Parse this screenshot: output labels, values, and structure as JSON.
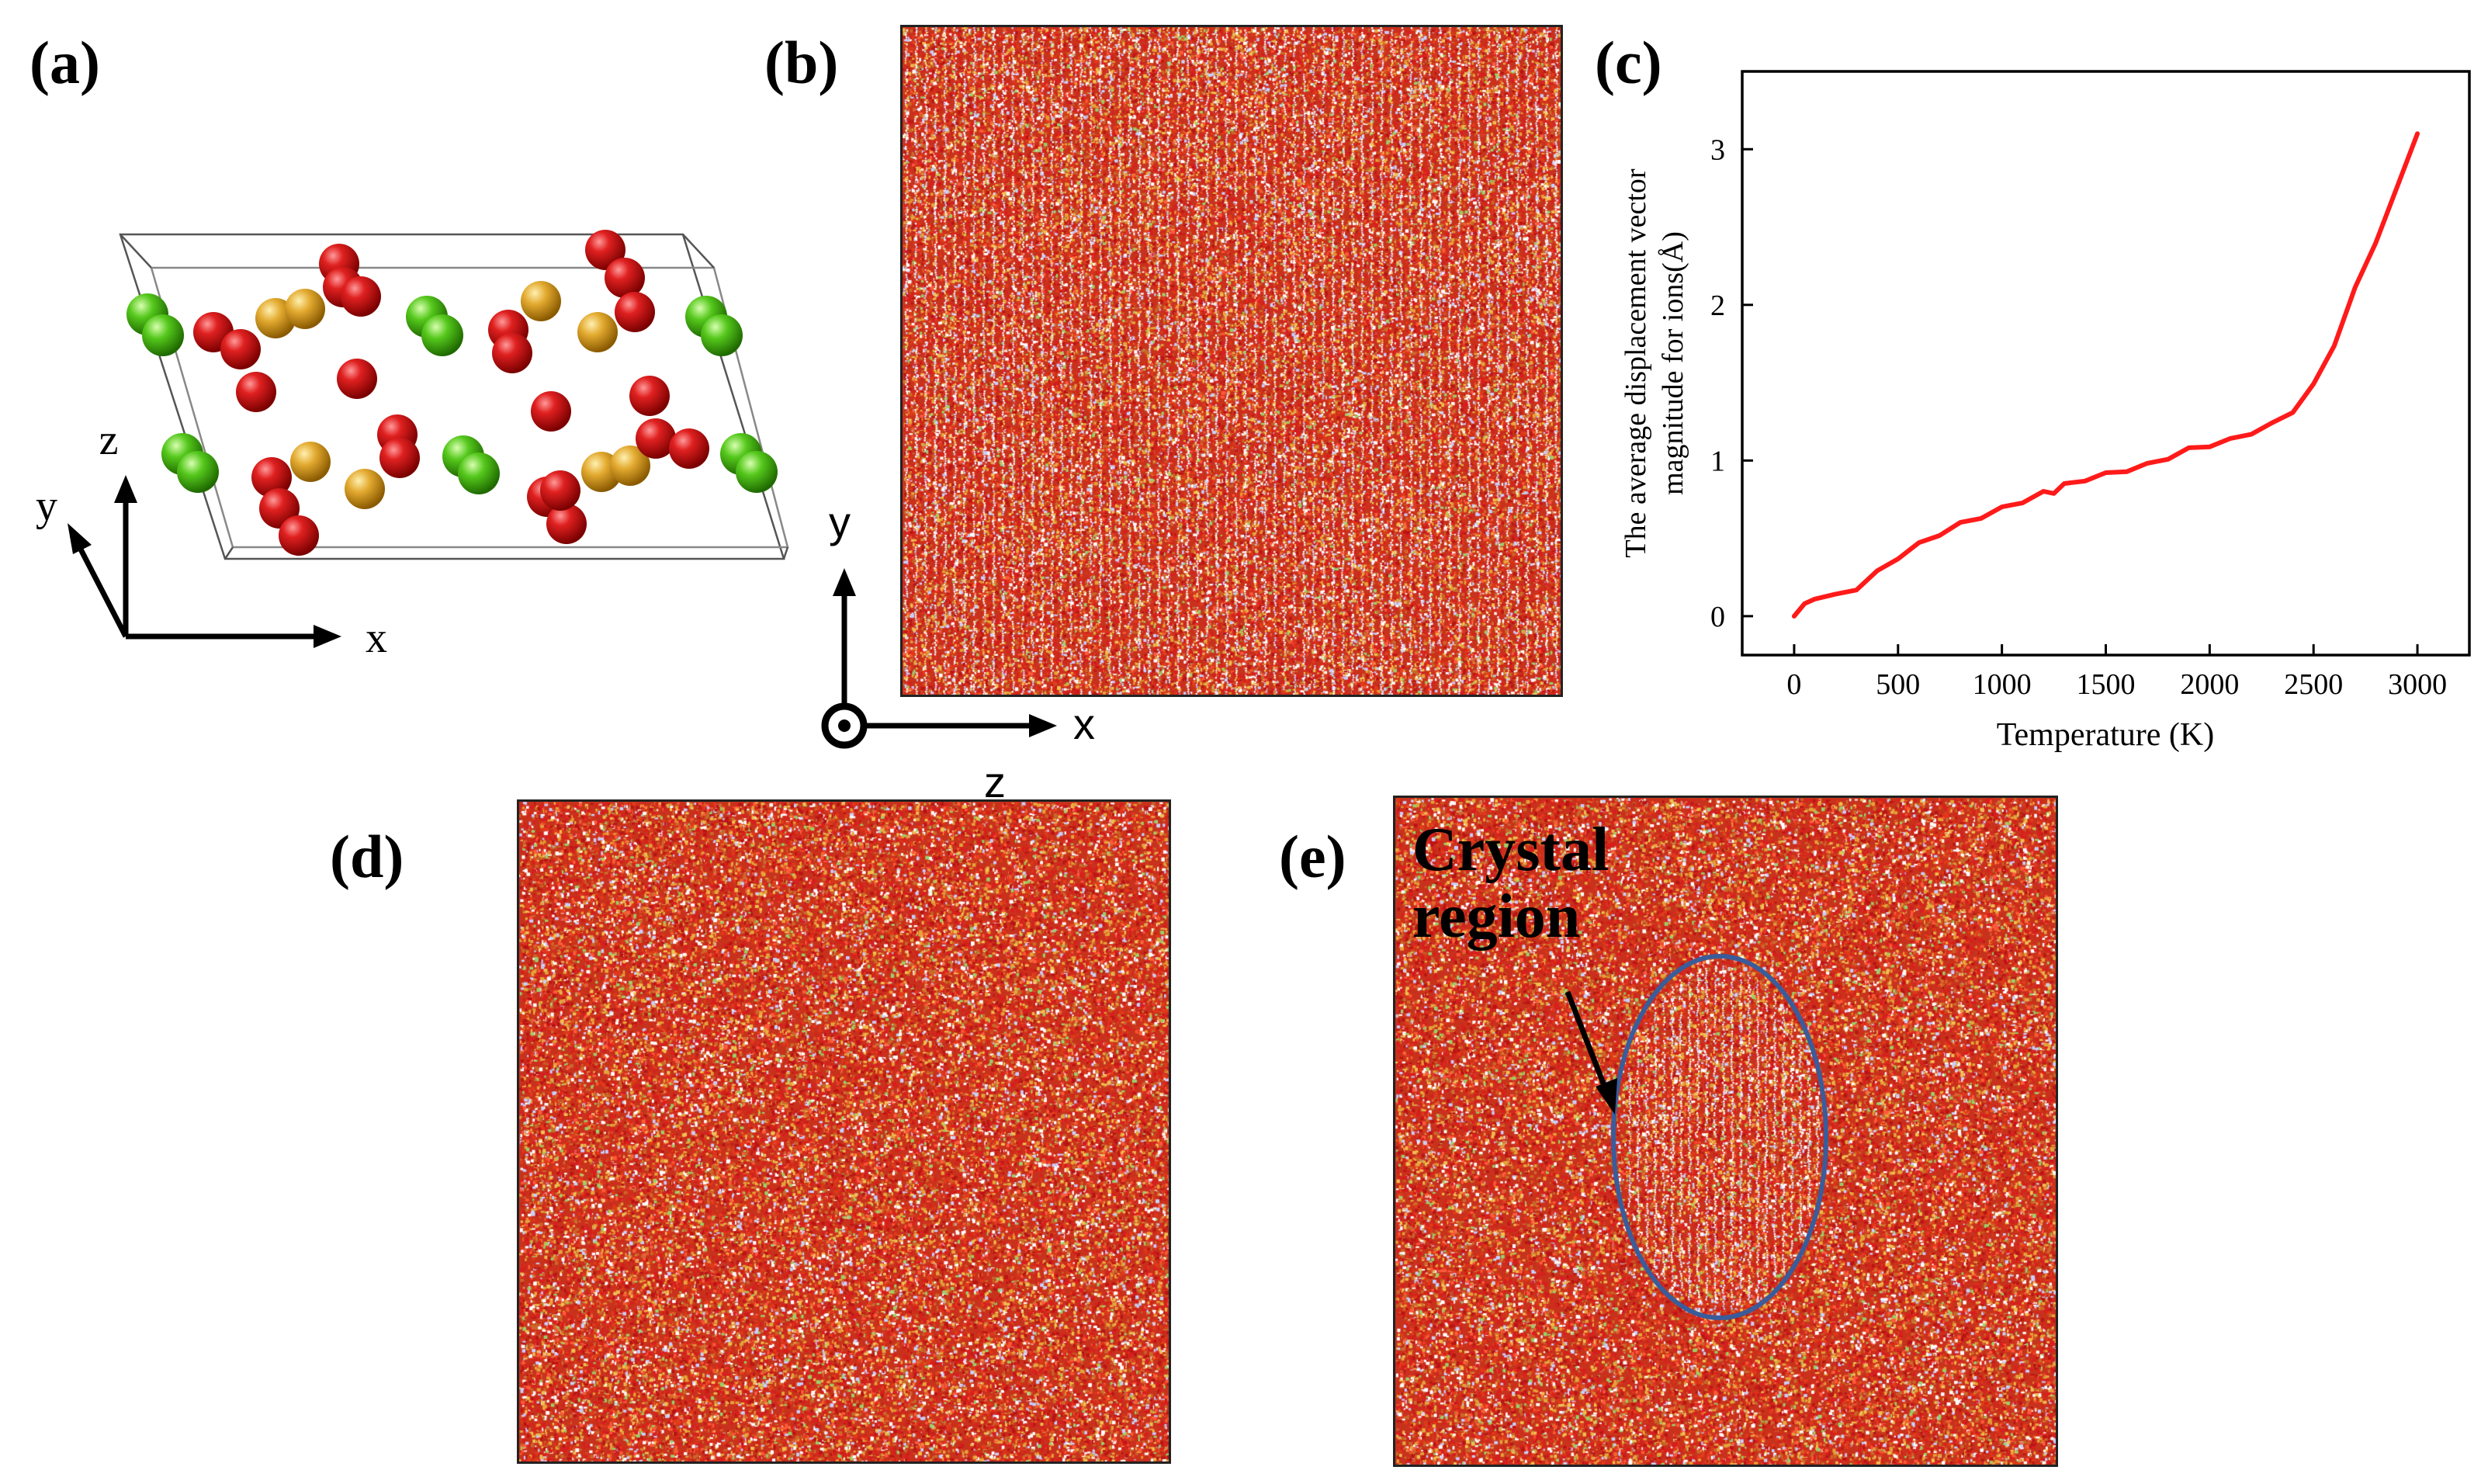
{
  "figure": {
    "panels": {
      "a": {
        "label": "(a)",
        "axes": {
          "x": "x",
          "y": "y",
          "z": "z"
        }
      },
      "b": {
        "label": "(b)",
        "axes": {
          "x": "x",
          "y": "y",
          "z": "z"
        }
      },
      "c": {
        "label": "(c)"
      },
      "d": {
        "label": "(d)"
      },
      "e": {
        "label": "(e)",
        "annotation_line1": "Crystal",
        "annotation_line2": "region"
      }
    },
    "colors": {
      "oxygen": "#d81616",
      "green_ion": "#4fc21a",
      "gold_ion": "#e0a52a",
      "md_base": "#c9361d",
      "curve": "#ff1a1a",
      "ellipse": "#3a5c9a"
    }
  },
  "chart_data": {
    "type": "line",
    "xlabel": "Temperature (K)",
    "ylabel_line1": "The average displacement  vector",
    "ylabel_line2": "magnitude for ions(Å)",
    "xlim": [
      -250,
      3250
    ],
    "ylim": [
      -0.25,
      3.5
    ],
    "xticks": [
      0,
      500,
      1000,
      1500,
      2000,
      2500,
      3000
    ],
    "yticks": [
      0,
      1,
      2,
      3
    ],
    "series": [
      {
        "x": [
          0,
          50,
          100,
          200,
          300,
          400,
          500,
          600,
          700,
          800,
          900,
          1000,
          1100,
          1200,
          1250,
          1300,
          1400,
          1500,
          1600,
          1700,
          1800,
          1900,
          2000,
          2100,
          2200,
          2300,
          2400,
          2500,
          2600,
          2700,
          2800,
          2900,
          3000
        ],
        "y": [
          0.0,
          0.08,
          0.11,
          0.13,
          0.18,
          0.28,
          0.38,
          0.46,
          0.53,
          0.59,
          0.64,
          0.69,
          0.74,
          0.79,
          0.8,
          0.84,
          0.88,
          0.91,
          0.94,
          0.97,
          1.02,
          1.07,
          1.1,
          1.13,
          1.18,
          1.23,
          1.32,
          1.48,
          1.75,
          2.1,
          2.4,
          2.75,
          3.1
        ]
      }
    ]
  }
}
